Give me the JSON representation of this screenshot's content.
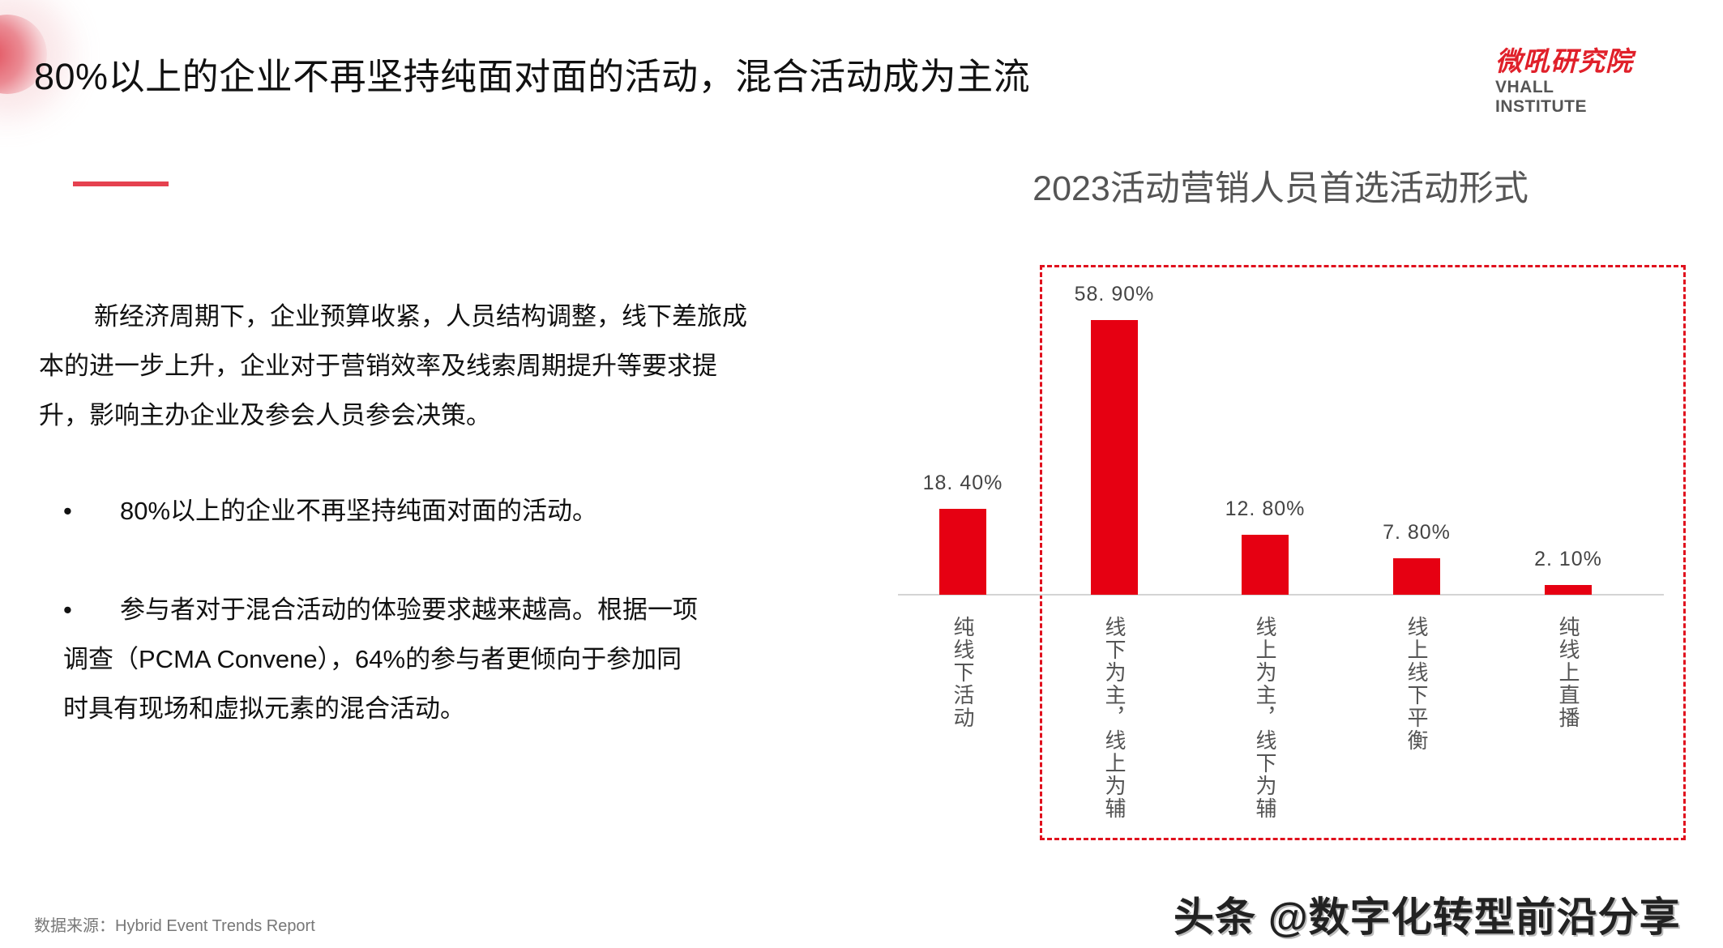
{
  "header": {
    "title": "80%以上的企业不再坚持纯面对面的活动，混合活动成为主流",
    "logo_cn": "微吼研究院",
    "logo_en": "VHALL INSTITUTE"
  },
  "body": {
    "intro_paragraph": "新经济周期下，企业预算收紧，人员结构调整，线下差旅成本的进一步上升，企业对于营销效率及线索周期提升等要求提升，影响主办企业及参会人员参会决策。",
    "bullets": [
      {
        "marker": "•",
        "text": "80%以上的企业不再坚持纯面对面的活动。"
      },
      {
        "marker": "•",
        "text_line1": "参与者对于混合活动的体验要求越来越高。根据一项",
        "text_line2": "调查（PCMA Convene），64%的参与者更倾向于参加同",
        "text_line3": "时具有现场和虚拟元素的混合活动。"
      }
    ]
  },
  "footer": {
    "source": "数据来源：Hybrid Event Trends Report",
    "watermark": "头条 @数字化转型前沿分享"
  },
  "colors": {
    "accent": "#e0101d",
    "accent_line": "#e5414f",
    "bar": "#e60012",
    "axis": "#d4d4d4",
    "label_text": "#444444"
  },
  "chart_data": {
    "type": "bar",
    "title": "2023活动营销人员首选活动形式",
    "categories": [
      "纯线下活动",
      "线下为主，线上为辅",
      "线上为主，线下为辅",
      "线上线下平衡",
      "纯线上直播"
    ],
    "values": [
      18.4,
      58.9,
      12.8,
      7.8,
      2.1
    ],
    "value_labels": [
      "18. 40%",
      "58. 90%",
      "12. 80%",
      "7. 80%",
      "2. 10%"
    ],
    "unit": "%",
    "xlabel": "",
    "ylabel": "",
    "ylim": [
      0,
      60
    ],
    "grid": false,
    "legend": "none",
    "annotations": [
      "Red dashed box highlighting the four hybrid/online categories (线下为主…纯线上直播)"
    ]
  }
}
